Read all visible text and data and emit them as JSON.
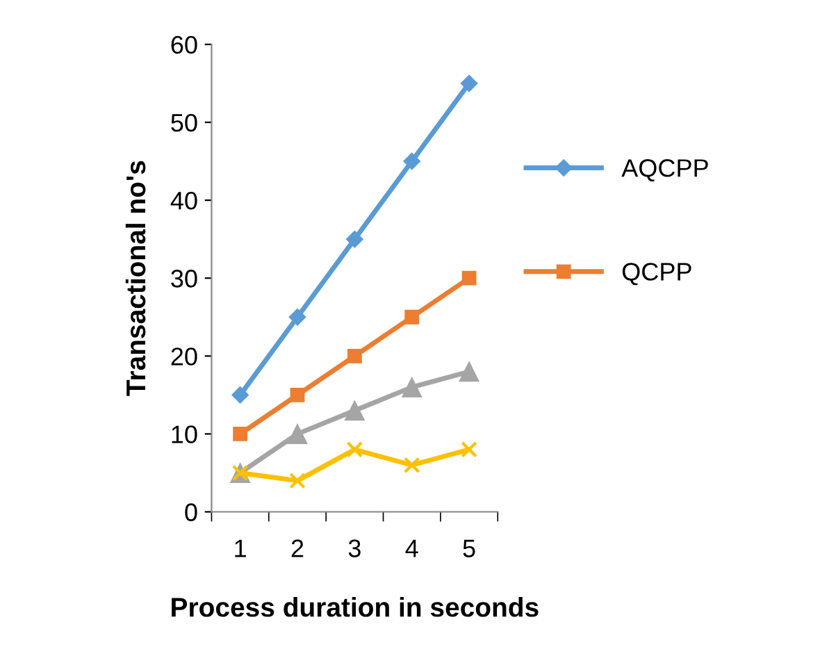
{
  "chart_data": {
    "type": "line",
    "xlabel": "Process duration in seconds",
    "ylabel": "Transactional no's",
    "categories": [
      "1",
      "2",
      "3",
      "4",
      "5"
    ],
    "series": [
      {
        "name": "AQCPP",
        "color": "#5b9bd5",
        "marker": "diamond",
        "values": [
          15,
          25,
          35,
          45,
          55
        ]
      },
      {
        "name": "QCPP",
        "color": "#ed7d31",
        "marker": "square",
        "values": [
          10,
          15,
          20,
          25,
          30
        ]
      },
      {
        "color": "#a5a5a5",
        "marker": "triangle",
        "values": [
          5,
          10,
          13,
          16,
          18
        ]
      },
      {
        "color": "#ffc000",
        "marker": "cross",
        "values": [
          5,
          4,
          8,
          6,
          8
        ]
      }
    ],
    "ylim": [
      0,
      60
    ],
    "yticks": [
      0,
      10,
      20,
      30,
      40,
      50,
      60
    ],
    "grid": false,
    "legend": "right",
    "line_style": "solid"
  }
}
